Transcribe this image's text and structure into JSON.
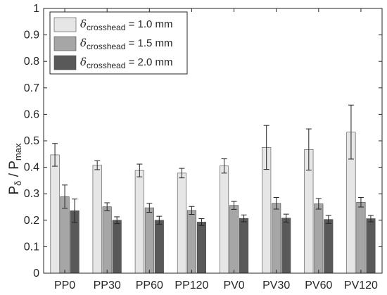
{
  "chart_data": {
    "type": "bar",
    "categories": [
      "PP0",
      "PP30",
      "PP60",
      "PP120",
      "PV0",
      "PV30",
      "PV60",
      "PV120"
    ],
    "series": [
      {
        "name_symbol": "δ",
        "name_subscript": "crosshead",
        "name_value": "= 1.0 mm",
        "color": "#e6e6e6",
        "values": [
          0.447,
          0.408,
          0.388,
          0.378,
          0.405,
          0.475,
          0.467,
          0.533
        ],
        "error": [
          0.043,
          0.017,
          0.024,
          0.018,
          0.027,
          0.083,
          0.078,
          0.102
        ]
      },
      {
        "name_symbol": "δ",
        "name_subscript": "crosshead",
        "name_value": "= 1.5 mm",
        "color": "#a6a6a6",
        "values": [
          0.289,
          0.251,
          0.247,
          0.237,
          0.256,
          0.264,
          0.262,
          0.268
        ],
        "error": [
          0.044,
          0.015,
          0.017,
          0.015,
          0.015,
          0.022,
          0.02,
          0.018
        ]
      },
      {
        "name_symbol": "δ",
        "name_subscript": "crosshead",
        "name_value": "= 2.0 mm",
        "color": "#595959",
        "values": [
          0.236,
          0.2,
          0.2,
          0.193,
          0.207,
          0.208,
          0.203,
          0.206
        ],
        "error": [
          0.044,
          0.013,
          0.015,
          0.013,
          0.013,
          0.015,
          0.015,
          0.012
        ]
      }
    ],
    "ylabel_main": "P",
    "ylabel_sub1": "δ",
    "ylabel_sep": " / P",
    "ylabel_sub2": "max",
    "ylim": [
      0,
      1
    ],
    "yticks": [
      "0",
      "0.1",
      "0.2",
      "0.3",
      "0.4",
      "0.5",
      "0.6",
      "0.7",
      "0.8",
      "0.9",
      "1"
    ],
    "grid": false,
    "legend_position": "top-left"
  }
}
